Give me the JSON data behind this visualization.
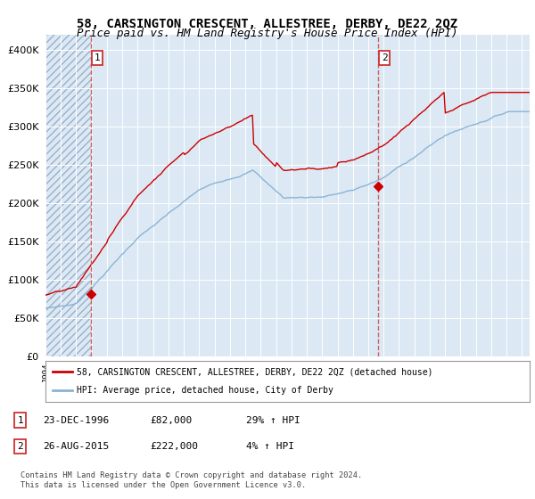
{
  "title": "58, CARSINGTON CRESCENT, ALLESTREE, DERBY, DE22 2QZ",
  "subtitle": "Price paid vs. HM Land Registry's House Price Index (HPI)",
  "bg_color": "#dce9f5",
  "red_line_color": "#cc0000",
  "blue_line_color": "#8ab4d4",
  "dashed_line_color": "#d06060",
  "ylim": [
    0,
    420000
  ],
  "yticks": [
    0,
    50000,
    100000,
    150000,
    200000,
    250000,
    300000,
    350000,
    400000
  ],
  "x_start_year": 1994,
  "x_end_year": 2025,
  "sale1_year": 1996.97,
  "sale1_value": 82000,
  "sale2_year": 2015.65,
  "sale2_value": 222000,
  "legend_red": "58, CARSINGTON CRESCENT, ALLESTREE, DERBY, DE22 2QZ (detached house)",
  "legend_blue": "HPI: Average price, detached house, City of Derby",
  "table_row1": [
    "1",
    "23-DEC-1996",
    "£82,000",
    "29% ↑ HPI"
  ],
  "table_row2": [
    "2",
    "26-AUG-2015",
    "£222,000",
    "4% ↑ HPI"
  ],
  "footer": "Contains HM Land Registry data © Crown copyright and database right 2024.\nThis data is licensed under the Open Government Licence v3.0.",
  "title_fontsize": 10,
  "subtitle_fontsize": 9
}
